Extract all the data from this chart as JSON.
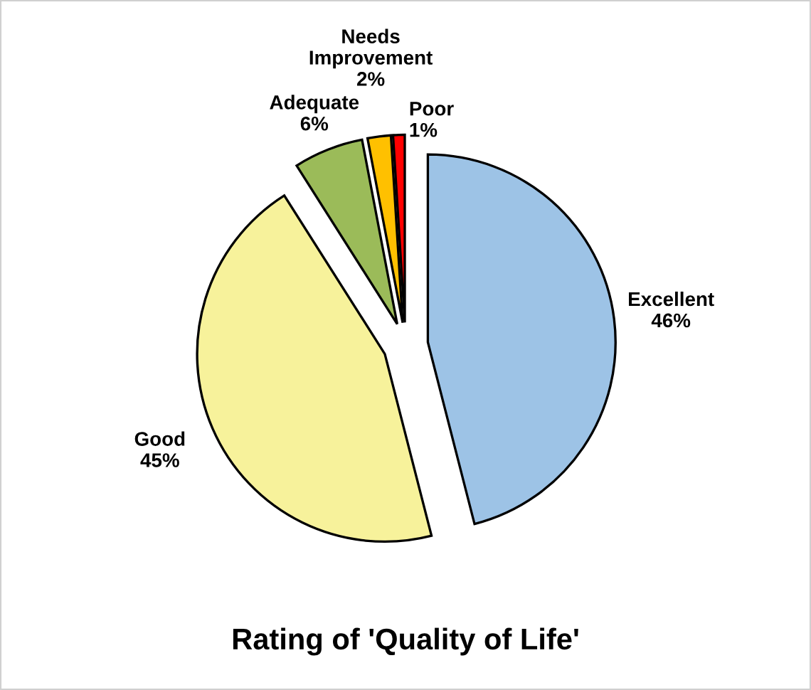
{
  "chart_data": {
    "type": "pie",
    "title": "Rating of 'Quality of Life'",
    "categories": [
      "Excellent",
      "Good",
      "Adequate",
      "Needs Improvement",
      "Poor"
    ],
    "values": [
      46,
      45,
      6,
      2,
      1
    ],
    "value_labels": [
      "46%",
      "45%",
      "6%",
      "2%",
      "1%"
    ],
    "colors": [
      "#9dc3e6",
      "#f7f29b",
      "#9bbb59",
      "#ffc000",
      "#ff0000"
    ],
    "legend": false
  }
}
